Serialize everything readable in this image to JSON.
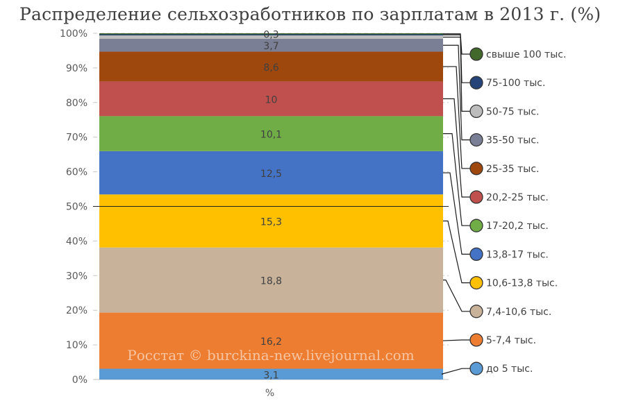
{
  "chart_data": {
    "type": "bar",
    "stacked": "percent",
    "title": "Распределение сельхозработников по зарплатам в 2013 г. (%)",
    "categories": [
      "%"
    ],
    "y_ticks": [
      "0%",
      "10%",
      "20%",
      "30%",
      "40%",
      "50%",
      "60%",
      "70%",
      "80%",
      "90%",
      "100%"
    ],
    "ylim": [
      0,
      100
    ],
    "grid": "dashed horizontal, solid line at 50%",
    "legend_position": "right",
    "series": [
      {
        "name": "до 5 тыс.",
        "value": 3.1,
        "label": "3,1",
        "color": "#5b9bd5"
      },
      {
        "name": "5-7,4 тыс.",
        "value": 16.2,
        "label": "16,2",
        "color": "#ed7d31"
      },
      {
        "name": "7,4-10,6 тыс.",
        "value": 18.8,
        "label": "18,8",
        "color": "#c9b29a"
      },
      {
        "name": "10,6-13,8 тыс.",
        "value": 15.3,
        "label": "15,3",
        "color": "#ffc000"
      },
      {
        "name": "13,8-17 тыс.",
        "value": 12.5,
        "label": "12,5",
        "color": "#4472c4"
      },
      {
        "name": "17-20,2 тыс.",
        "value": 10.1,
        "label": "10,1",
        "color": "#70ad47"
      },
      {
        "name": "20,2-25 тыс.",
        "value": 10,
        "label": "10",
        "color": "#c0504d"
      },
      {
        "name": "25-35 тыс.",
        "value": 8.6,
        "label": "8,6",
        "color": "#9e480e"
      },
      {
        "name": "35-50 тыс.",
        "value": 3.7,
        "label": "3,7",
        "color": "#7a7f96"
      },
      {
        "name": "50-75 тыс.",
        "value": 1.0,
        "label": "",
        "color": "#bdbdbd"
      },
      {
        "name": "75-100 тыс.",
        "value": 0.3,
        "label": "",
        "color": "#264478"
      },
      {
        "name": "свыше 100 тыс.",
        "value": 0.3,
        "label": "0,3",
        "color": "#43682b"
      }
    ],
    "watermark": "Росстат © burckina-new.livejournal.com"
  }
}
